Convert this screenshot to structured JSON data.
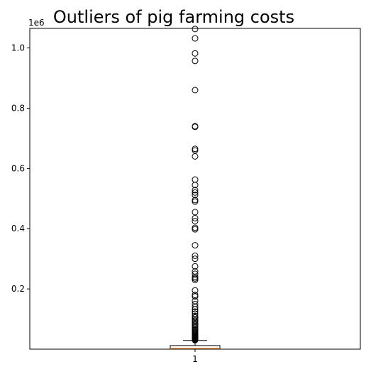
{
  "chart_data": {
    "type": "box",
    "title": "Outliers of pig farming costs",
    "xlabel": "",
    "ylabel": "",
    "y_offset_label": "1e6",
    "categories": [
      "1"
    ],
    "ylim": [
      0,
      1065000
    ],
    "yticks": [
      {
        "value": 200000,
        "label": "0.2"
      },
      {
        "value": 400000,
        "label": "0.4"
      },
      {
        "value": 600000,
        "label": "0.6"
      },
      {
        "value": 800000,
        "label": "0.8"
      },
      {
        "value": 1000000,
        "label": "1.0"
      }
    ],
    "grid": false,
    "box": {
      "whisker_low": 0,
      "q1": 1000,
      "median": 2000,
      "q3": 12000,
      "whisker_high": 29000
    },
    "outliers": [
      30000,
      32000,
      34000,
      36000,
      38000,
      40000,
      42000,
      44000,
      46000,
      48000,
      50000,
      53000,
      56000,
      60000,
      64000,
      68000,
      72000,
      76000,
      80000,
      85000,
      90000,
      95000,
      100000,
      105000,
      110000,
      118000,
      125000,
      132000,
      140000,
      150000,
      160000,
      175000,
      180000,
      195000,
      230000,
      235000,
      240000,
      250000,
      258000,
      275000,
      300000,
      310000,
      345000,
      398000,
      403000,
      425000,
      435000,
      455000,
      490000,
      495000,
      512000,
      520000,
      528000,
      545000,
      563000,
      640000,
      660000,
      665000,
      738000,
      740000,
      860000,
      957000,
      982000,
      1032000,
      1063000
    ]
  }
}
